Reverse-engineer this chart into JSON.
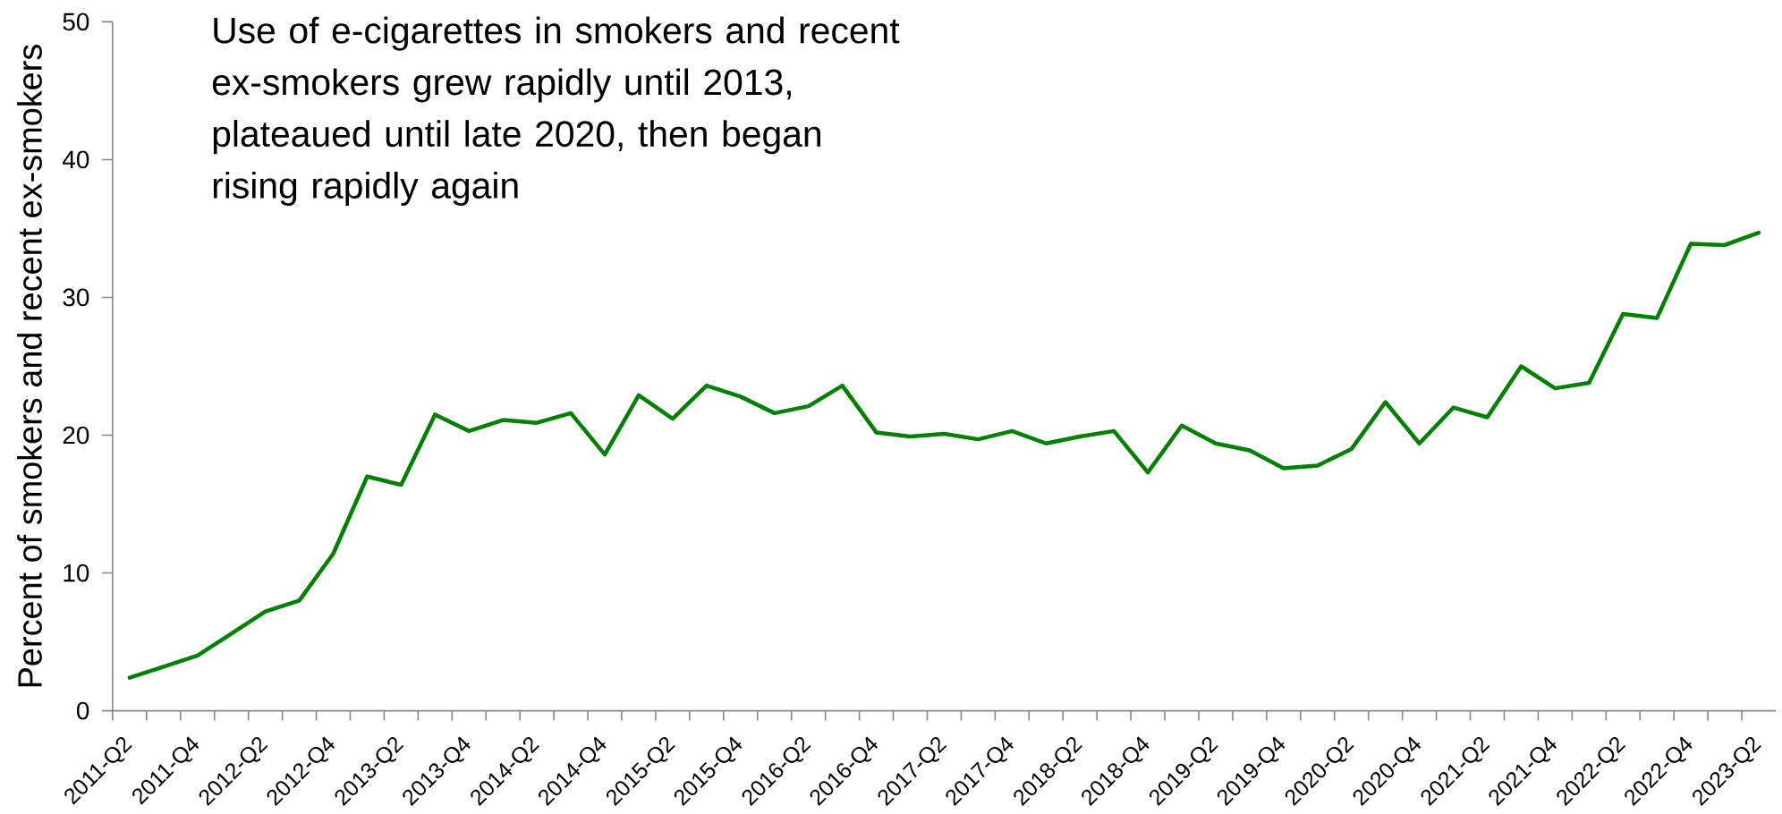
{
  "chart_data": {
    "type": "line",
    "title": "Use of e-cigarettes in smokers and recent ex-smokers grew rapidly until 2013, plateaued until late 2020, then began rising rapidly again",
    "ylabel": "Percent of smokers and recent ex-smokers",
    "categories": [
      "2011-Q2",
      null,
      "2011-Q4",
      null,
      "2012-Q2",
      null,
      "2012-Q4",
      null,
      "2013-Q2",
      null,
      "2013-Q4",
      null,
      "2014-Q2",
      null,
      "2014-Q4",
      null,
      "2015-Q2",
      null,
      "2015-Q4",
      null,
      "2016-Q2",
      null,
      "2016-Q4",
      null,
      "2017-Q2",
      null,
      "2017-Q4",
      null,
      "2018-Q2",
      null,
      "2018-Q4",
      null,
      "2019-Q2",
      null,
      "2019-Q4",
      null,
      "2020-Q2",
      null,
      "2020-Q4",
      null,
      "2021-Q2",
      null,
      "2021-Q4",
      null,
      "2022-Q2",
      null,
      "2022-Q4",
      null,
      "2023-Q2"
    ],
    "series": [
      {
        "color": "#008000",
        "values": [
          2.4,
          3.2,
          4.0,
          5.6,
          7.2,
          8.0,
          11.4,
          17.0,
          16.4,
          21.5,
          20.3,
          21.1,
          20.9,
          21.6,
          18.6,
          22.9,
          21.2,
          23.6,
          22.8,
          21.6,
          22.1,
          23.6,
          20.2,
          19.9,
          20.1,
          19.7,
          20.3,
          19.4,
          19.9,
          20.3,
          17.3,
          20.7,
          19.4,
          18.9,
          17.6,
          17.8,
          19.0,
          22.4,
          19.4,
          22.0,
          21.3,
          25.0,
          23.4,
          23.8,
          28.8,
          28.5,
          33.9,
          33.8,
          34.7
        ]
      }
    ],
    "ylim": [
      0,
      50
    ],
    "yticks": [
      0,
      10,
      20,
      30,
      40,
      50
    ],
    "marker": "none",
    "line_style": "solid"
  }
}
